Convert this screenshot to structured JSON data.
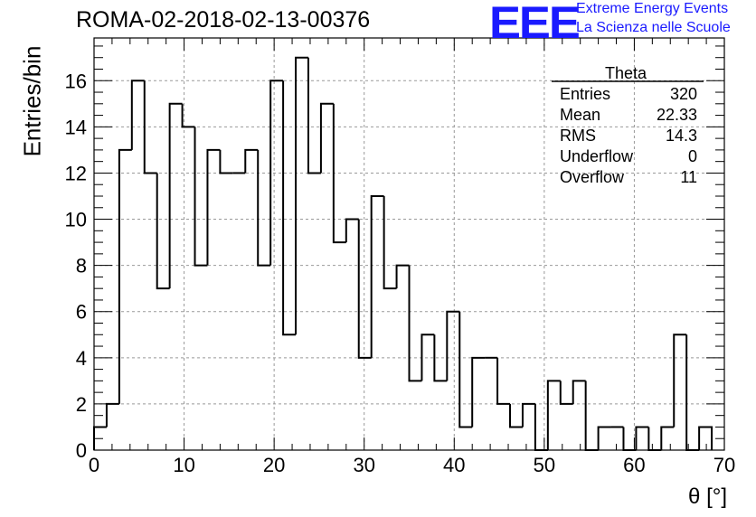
{
  "chart_data": {
    "type": "bar",
    "title": "ROMA-02-2018-02-13-00376",
    "xlabel": "θ [°]",
    "ylabel": "Entries/bin",
    "xlim": [
      0,
      70
    ],
    "ylim": [
      0,
      17.85
    ],
    "bin_edges_start": 0,
    "bin_width": 1.4,
    "values": [
      1,
      2,
      13,
      16,
      12,
      7,
      15,
      14,
      8,
      13,
      12,
      12,
      13,
      8,
      16,
      5,
      17,
      12,
      15,
      9,
      10,
      4,
      11,
      7,
      8,
      3,
      5,
      3,
      6,
      1,
      4,
      4,
      2,
      1,
      2,
      0,
      3,
      2,
      3,
      0,
      1,
      1,
      0,
      1,
      0,
      1,
      5,
      0,
      1
    ],
    "x_ticks": [
      "0",
      "10",
      "20",
      "30",
      "40",
      "50",
      "60",
      "70"
    ],
    "y_ticks": [
      "0",
      "2",
      "4",
      "6",
      "8",
      "10",
      "12",
      "14",
      "16"
    ],
    "grid": true,
    "stats_box": {
      "name": "Theta",
      "rows": [
        {
          "label": "Entries",
          "value": "320"
        },
        {
          "label": "Mean",
          "value": "22.33"
        },
        {
          "label": "RMS",
          "value": "14.3"
        },
        {
          "label": "Underflow",
          "value": "0"
        },
        {
          "label": "Overflow",
          "value": "11"
        }
      ],
      "placement": "top-right"
    }
  },
  "branding": {
    "logo_text": "EEE",
    "line1": "Extreme Energy Events",
    "line2": "La Scienza nelle Scuole",
    "color": "#1a1aff"
  }
}
